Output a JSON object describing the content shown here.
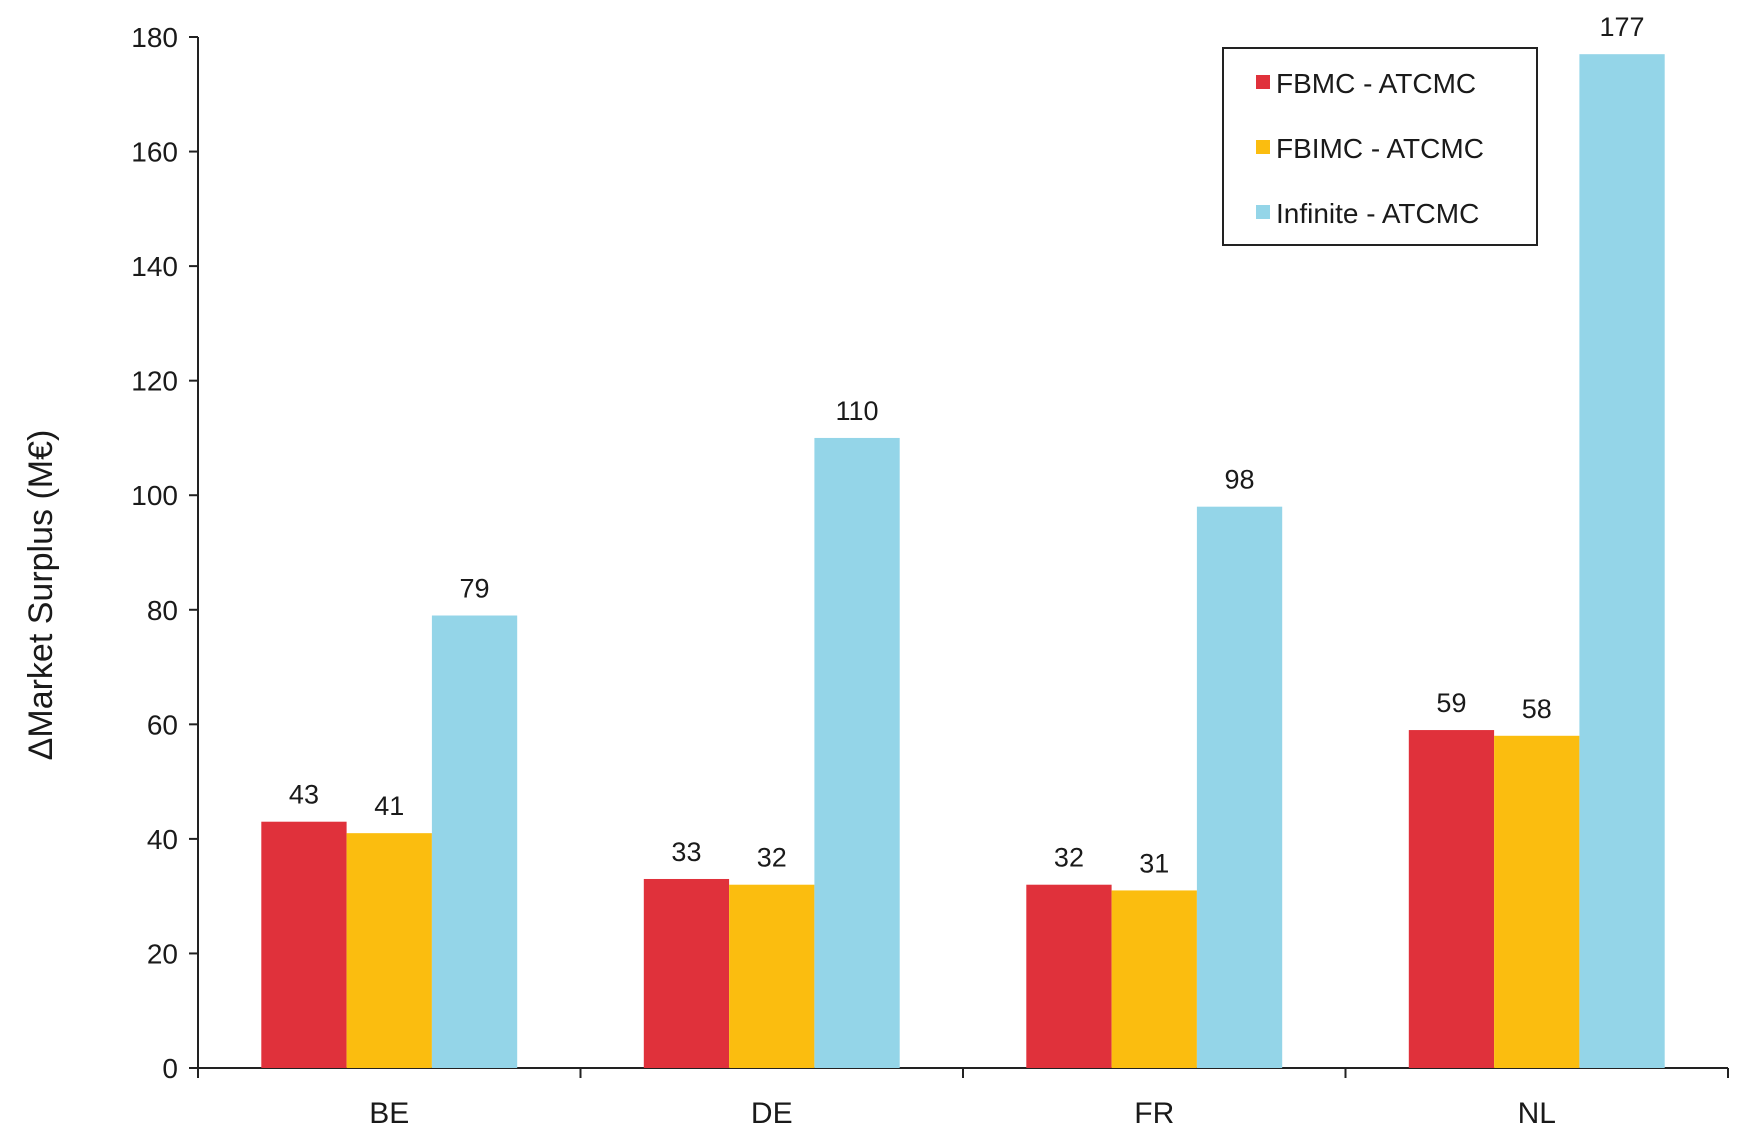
{
  "chart_data": {
    "type": "bar",
    "title": "",
    "xlabel": "",
    "ylabel": "ΔMarket Surplus (M€)",
    "ylim": [
      0,
      180
    ],
    "yticks": [
      0,
      20,
      40,
      60,
      80,
      100,
      120,
      140,
      160,
      180
    ],
    "categories": [
      "BE",
      "DE",
      "FR",
      "NL"
    ],
    "series": [
      {
        "name": "FBMC - ATCMC",
        "color": "#e0313b",
        "values": [
          43,
          33,
          32,
          59
        ],
        "labels": [
          "43",
          "33",
          "32",
          "59"
        ]
      },
      {
        "name": "FBIMC - ATCMC",
        "color": "#fbbd0f",
        "values": [
          41,
          32,
          31,
          58
        ],
        "labels": [
          "41",
          "32",
          "31",
          "58"
        ]
      },
      {
        "name": "Infinite - ATCMC",
        "color": "#94d5e8",
        "values": [
          79,
          110,
          98,
          177
        ],
        "labels": [
          "79",
          "110",
          "98",
          "177"
        ]
      }
    ],
    "grid": false,
    "legend_position": "top-right"
  }
}
